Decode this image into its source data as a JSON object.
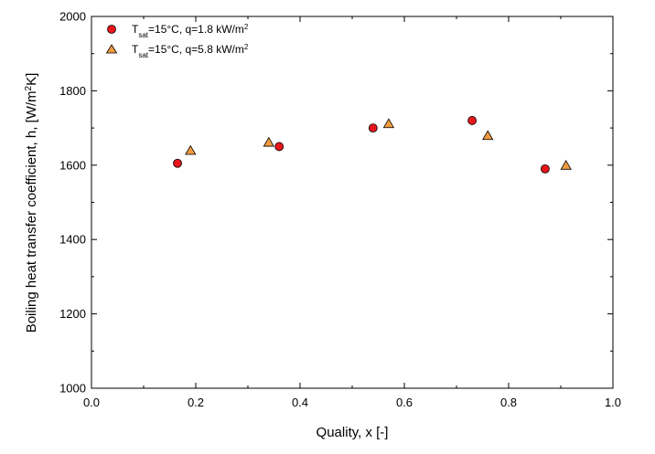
{
  "chart_data": {
    "type": "scatter",
    "title": "",
    "xlabel": "Quality, x [-]",
    "ylabel": {
      "main": "Boiling heat transfer coefficient, h, [W/m",
      "sup": "2",
      "end": "K]"
    },
    "xlim": [
      0.0,
      1.0
    ],
    "ylim": [
      1000,
      2000
    ],
    "xticks": [
      "0.0",
      "0.2",
      "0.4",
      "0.6",
      "0.8",
      "1.0"
    ],
    "yticks": [
      "1000",
      "1200",
      "1400",
      "1600",
      "1800",
      "2000"
    ],
    "grid": false,
    "legend_position": "top-left",
    "series": [
      {
        "legend": {
          "base": "T",
          "sub": "sat",
          "mid": "=15°C, q=1.8 kW/m",
          "sup": "2"
        },
        "marker": "circle",
        "color": "#e8161b",
        "x": [
          0.165,
          0.36,
          0.54,
          0.73,
          0.87
        ],
        "y": [
          1605,
          1650,
          1700,
          1720,
          1590
        ]
      },
      {
        "legend": {
          "base": "T",
          "sub": "sat",
          "mid": "=15°C, q=5.8 kW/m",
          "sup": "2"
        },
        "marker": "triangle",
        "color": "#f29b3f",
        "x": [
          0.19,
          0.34,
          0.57,
          0.76,
          0.91
        ],
        "y": [
          1640,
          1662,
          1712,
          1680,
          1600
        ]
      }
    ]
  }
}
